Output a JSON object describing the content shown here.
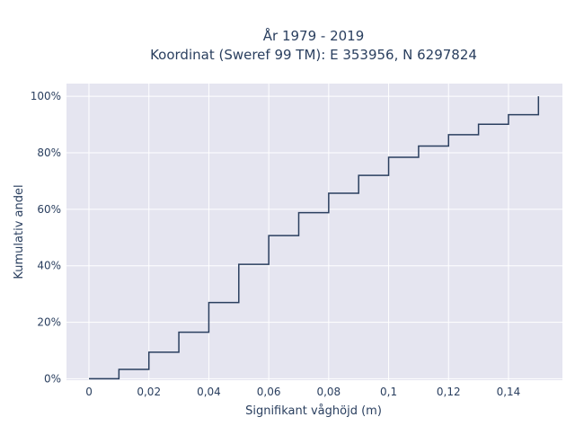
{
  "chart_data": {
    "type": "line",
    "step": "hv",
    "title_line1": "År 1979 - 2019",
    "title_line2": "Koordinat (Sweref 99 TM): E 353956, N 6297824",
    "xlabel": "Signifikant våghöjd (m)",
    "ylabel": "Kumulativ andel",
    "xlim": [
      -0.0075,
      0.158
    ],
    "ylim": [
      -0.005,
      1.045
    ],
    "x_ticks": [
      0,
      0.02,
      0.04,
      0.06,
      0.08,
      0.1,
      0.12,
      0.14
    ],
    "x_tick_labels": [
      "0",
      "0,02",
      "0,04",
      "0,06",
      "0,08",
      "0,1",
      "0,12",
      "0,14"
    ],
    "y_ticks": [
      0,
      0.2,
      0.4,
      0.6,
      0.8,
      1.0
    ],
    "y_tick_labels": [
      "0%",
      "20%",
      "40%",
      "60%",
      "80%",
      "100%"
    ],
    "grid": true,
    "series": [
      {
        "x": [
          0,
          0.01,
          0.02,
          0.03,
          0.04,
          0.05,
          0.06,
          0.07,
          0.08,
          0.09,
          0.1,
          0.11,
          0.12,
          0.13,
          0.14,
          0.15,
          0.15
        ],
        "y": [
          0,
          0.033,
          0.094,
          0.165,
          0.27,
          0.405,
          0.507,
          0.588,
          0.657,
          0.72,
          0.784,
          0.824,
          0.864,
          0.901,
          0.935,
          0.935,
          1.0
        ]
      }
    ],
    "colors": {
      "line": "#2a3f5f",
      "plot_bg": "#e5e5f0",
      "grid": "#ffffff"
    }
  }
}
